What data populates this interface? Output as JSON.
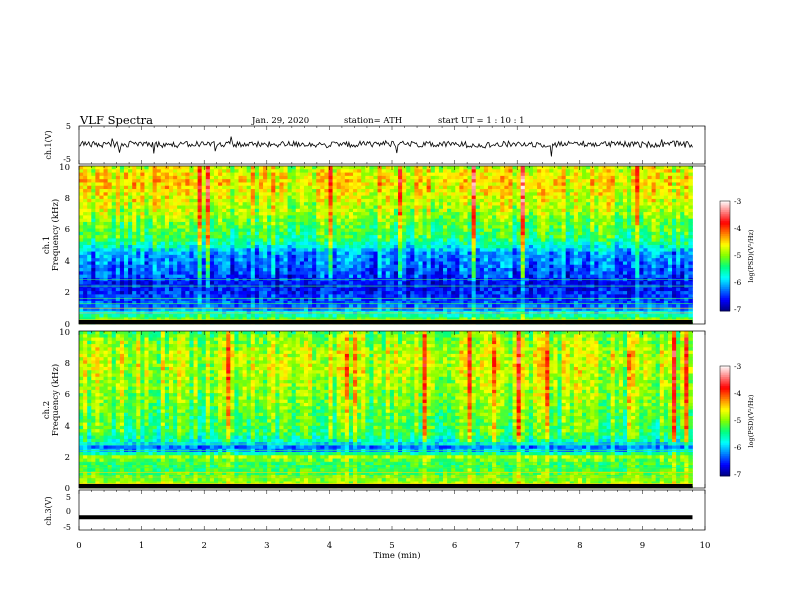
{
  "header": {
    "title": "VLF  Spectra",
    "date": "Jan. 29, 2020",
    "station": "station= ATH",
    "start": "start  UT  =   1  : 10 : 1"
  },
  "colorbar": {
    "label": "log(PSD)(V²/Hz)",
    "ticks": [
      "-3",
      "-4",
      "-5",
      "-6",
      "-7"
    ],
    "colors": [
      "#00007f",
      "#0000ff",
      "#0080ff",
      "#00ffff",
      "#00ff80",
      "#80ff00",
      "#ffff00",
      "#ff8000",
      "#ff0000",
      "#ff8080",
      "#ffffff"
    ]
  },
  "chart_data": [
    {
      "type": "line",
      "name": "ch1-waveform",
      "ylabel": "ch.1(V)",
      "ylim": [
        -5,
        5
      ],
      "yticks": [
        "5",
        "-5"
      ],
      "xlim": [
        0,
        10
      ],
      "note": "noisy signal near ~0.2 V with occasional spikes",
      "x": [
        0,
        0.5,
        1,
        1.5,
        2,
        2.5,
        3,
        3.5,
        4,
        4.5,
        5,
        5.5,
        6,
        6.5,
        7,
        7.5,
        8,
        8.5,
        9,
        9.5,
        9.8
      ],
      "y": [
        0.3,
        0.1,
        0.4,
        0.0,
        0.3,
        0.2,
        0.1,
        0.3,
        0.0,
        0.2,
        0.4,
        0.1,
        0.2,
        0.0,
        0.3,
        0.1,
        0.4,
        0.2,
        0.1,
        0.3,
        0.0
      ]
    },
    {
      "type": "heatmap",
      "name": "ch1-spectrogram",
      "ylabel": "Frequency  (kHz)",
      "channel_label": "ch.1",
      "ylim": [
        0,
        10
      ],
      "yticks": [
        "0",
        "2",
        "4",
        "6",
        "8",
        "10"
      ],
      "xlim": [
        0,
        10
      ],
      "data_end_min": 9.8,
      "zlim": [
        -7,
        -3
      ],
      "band_profile": {
        "freq_khz": [
          0.2,
          0.6,
          1.0,
          1.5,
          2.0,
          2.5,
          3.0,
          3.5,
          4.0,
          4.5,
          5.0,
          5.5,
          6.0,
          6.5,
          7.0,
          7.5,
          8.0,
          8.5,
          9.0,
          9.5,
          10.0
        ],
        "log_psd": [
          -5.0,
          -5.6,
          -6.2,
          -6.4,
          -6.5,
          -6.6,
          -6.4,
          -6.3,
          -6.2,
          -6.1,
          -5.6,
          -5.3,
          -5.2,
          -5.1,
          -4.9,
          -4.8,
          -4.7,
          -4.6,
          -4.5,
          -4.6,
          -4.8
        ]
      }
    },
    {
      "type": "heatmap",
      "name": "ch2-spectrogram",
      "ylabel": "Frequency  (kHz)",
      "channel_label": "ch.2",
      "ylim": [
        0,
        10
      ],
      "yticks": [
        "0",
        "2",
        "4",
        "6",
        "8",
        "10"
      ],
      "xlim": [
        0,
        10
      ],
      "data_end_min": 9.8,
      "zlim": [
        -7,
        -3
      ],
      "band_profile": {
        "freq_khz": [
          0.2,
          0.6,
          1.0,
          1.5,
          2.0,
          2.5,
          3.0,
          3.5,
          4.0,
          4.5,
          5.0,
          5.5,
          6.0,
          6.5,
          7.0,
          7.5,
          8.0,
          8.5,
          9.0,
          9.5,
          10.0
        ],
        "log_psd": [
          -4.9,
          -5.0,
          -5.2,
          -5.3,
          -4.9,
          -6.4,
          -5.6,
          -5.3,
          -5.2,
          -5.2,
          -5.1,
          -5.0,
          -5.0,
          -4.9,
          -4.9,
          -4.8,
          -4.8,
          -4.8,
          -4.9,
          -5.0,
          -5.2
        ]
      }
    },
    {
      "type": "line",
      "name": "ch3-waveform",
      "ylabel": "ch.3(V)",
      "ylim": [
        -5,
        5
      ],
      "yticks": [
        "5",
        "0",
        "-5"
      ],
      "xlim": [
        0,
        10
      ],
      "xlabel": "Time  (min)",
      "xticks": [
        "0",
        "1",
        "2",
        "3",
        "4",
        "5",
        "6",
        "7",
        "8",
        "9",
        "10"
      ],
      "x": [
        0,
        9.8
      ],
      "y": [
        -1.8,
        -1.8
      ]
    }
  ]
}
